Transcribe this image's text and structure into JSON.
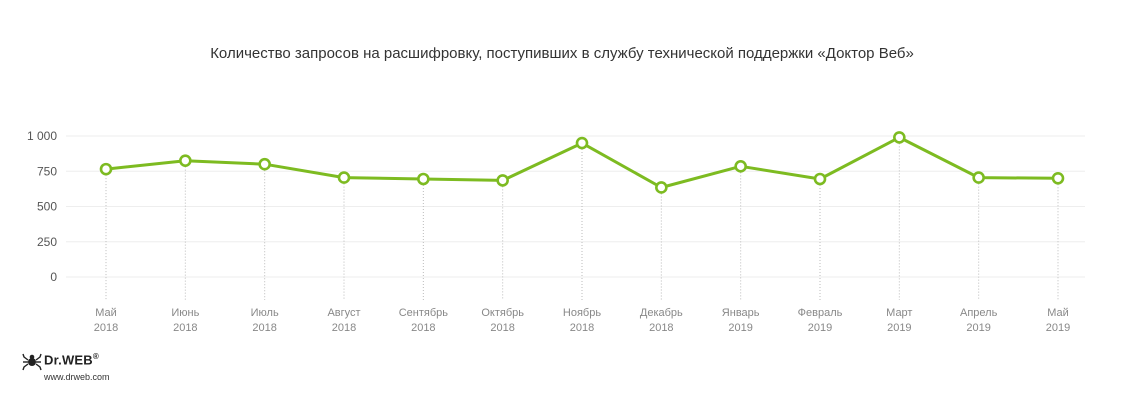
{
  "chart_data": {
    "type": "line",
    "title": "Количество запросов на расшифровку, поступивших в службу технической поддержки «Доктор Веб»",
    "xlabel": "",
    "ylabel": "",
    "categories": [
      [
        "Май",
        "2018"
      ],
      [
        "Июнь",
        "2018"
      ],
      [
        "Июль",
        "2018"
      ],
      [
        "Август",
        "2018"
      ],
      [
        "Сентябрь",
        "2018"
      ],
      [
        "Октябрь",
        "2018"
      ],
      [
        "Ноябрь",
        "2018"
      ],
      [
        "Декабрь",
        "2018"
      ],
      [
        "Январь",
        "2019"
      ],
      [
        "Февраль",
        "2019"
      ],
      [
        "Март",
        "2019"
      ],
      [
        "Апрель",
        "2019"
      ],
      [
        "Май",
        "2019"
      ]
    ],
    "series": [
      {
        "values": [
          765,
          825,
          800,
          705,
          695,
          685,
          950,
          635,
          785,
          695,
          990,
          705,
          700
        ]
      }
    ],
    "ylim": [
      0,
      1000
    ],
    "yticks": [
      0,
      250,
      500,
      750,
      1000
    ],
    "ytick_labels": [
      "0",
      "250",
      "500",
      "750",
      "1 000"
    ],
    "grid": "horizontal",
    "line_color": "#7dbb21",
    "marker_fill": "#ffffff",
    "vertical_guides": "dotted"
  },
  "logo": {
    "brand": "Dr.WEB",
    "registered": "®",
    "url": "www.drweb.com",
    "icon": "spider-icon"
  }
}
